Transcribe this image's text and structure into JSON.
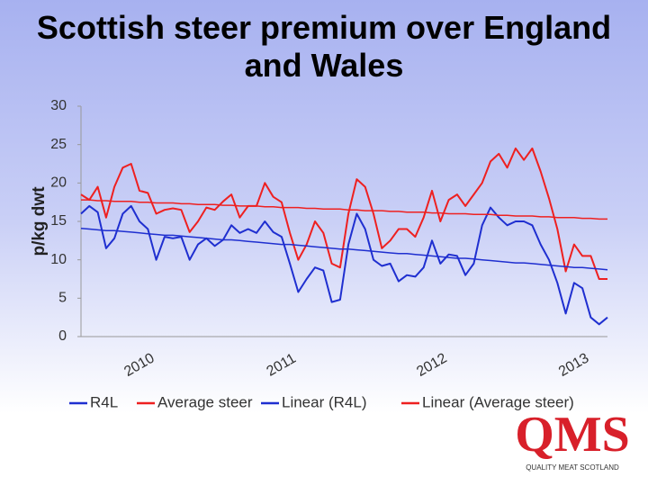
{
  "chart_data": {
    "type": "line",
    "title": "Scottish steer premium over England and Wales",
    "y_label": "p/kg dwt",
    "categories": [
      null,
      null,
      null,
      null,
      null,
      null,
      null,
      "2010",
      null,
      null,
      null,
      null,
      null,
      null,
      null,
      null,
      null,
      null,
      null,
      null,
      null,
      null,
      null,
      null,
      "2011",
      null,
      null,
      null,
      null,
      null,
      null,
      null,
      null,
      null,
      null,
      null,
      null,
      null,
      null,
      null,
      null,
      null,
      "2012",
      null,
      null,
      null,
      null,
      null,
      null,
      null,
      null,
      null,
      null,
      null,
      null,
      null,
      null,
      null,
      null,
      "2013",
      null,
      null,
      null,
      null
    ],
    "series": [
      {
        "name": "R4L",
        "color": "#1f2fd0",
        "width": 2,
        "values": [
          16,
          17,
          16.2,
          11.5,
          12.8,
          16,
          17,
          15,
          14,
          10,
          13,
          12.8,
          13,
          10,
          12,
          12.8,
          11.8,
          12.6,
          14.5,
          13.5,
          14,
          13.5,
          15,
          13.6,
          13,
          9.5,
          5.8,
          7.5,
          9,
          8.6,
          4.5,
          4.8,
          12,
          16,
          14,
          10,
          9.2,
          9.5,
          7.2,
          8,
          7.8,
          9,
          12.5,
          9.5,
          10.7,
          10.5,
          8,
          9.5,
          14.5,
          16.8,
          15.5,
          14.5,
          15,
          15,
          14.5,
          12,
          10,
          7,
          3,
          7,
          6.3,
          2.5,
          1.6,
          2.5
        ]
      },
      {
        "name": "Average steer",
        "color": "#ee2020",
        "width": 2,
        "values": [
          18.5,
          17.8,
          19.5,
          15.5,
          19.5,
          22,
          22.5,
          19,
          18.7,
          16,
          16.5,
          16.7,
          16.5,
          13.6,
          15,
          16.8,
          16.5,
          17.6,
          18.5,
          15.5,
          17,
          17,
          20,
          18.2,
          17.5,
          13.5,
          10,
          12,
          15,
          13.5,
          9.5,
          9,
          16,
          20.5,
          19.5,
          16,
          11.5,
          12.5,
          14,
          14,
          13,
          15.5,
          19,
          15,
          17.8,
          18.5,
          17,
          18.5,
          20,
          22.8,
          23.8,
          22,
          24.5,
          23,
          24.5,
          21.5,
          18,
          14,
          8.5,
          12,
          10.5,
          10.5,
          7.5,
          7.5
        ]
      },
      {
        "name": "Linear (R4L)",
        "color": "#1f2fd0",
        "width": 1.5,
        "values": [
          14.1,
          14.0,
          13.9,
          13.8,
          13.8,
          13.7,
          13.6,
          13.5,
          13.4,
          13.3,
          13.2,
          13.2,
          13.1,
          13.0,
          12.9,
          12.8,
          12.7,
          12.6,
          12.6,
          12.5,
          12.4,
          12.3,
          12.2,
          12.1,
          12.0,
          12.0,
          11.9,
          11.8,
          11.7,
          11.6,
          11.5,
          11.4,
          11.4,
          11.3,
          11.2,
          11.1,
          11.0,
          10.9,
          10.8,
          10.8,
          10.7,
          10.6,
          10.5,
          10.4,
          10.3,
          10.2,
          10.2,
          10.1,
          10.0,
          9.9,
          9.8,
          9.7,
          9.6,
          9.6,
          9.5,
          9.4,
          9.3,
          9.2,
          9.1,
          9.0,
          9.0,
          8.9,
          8.8,
          8.7
        ]
      },
      {
        "name": "Linear (Average steer)",
        "color": "#ee2020",
        "width": 1.5,
        "values": [
          17.8,
          17.8,
          17.7,
          17.7,
          17.6,
          17.6,
          17.6,
          17.5,
          17.5,
          17.4,
          17.4,
          17.4,
          17.3,
          17.3,
          17.2,
          17.2,
          17.2,
          17.1,
          17.1,
          17.0,
          17.0,
          17.0,
          16.9,
          16.9,
          16.8,
          16.8,
          16.8,
          16.7,
          16.7,
          16.6,
          16.6,
          16.6,
          16.5,
          16.5,
          16.4,
          16.4,
          16.4,
          16.3,
          16.3,
          16.2,
          16.2,
          16.2,
          16.1,
          16.1,
          16.0,
          16.0,
          16.0,
          15.9,
          15.9,
          15.9,
          15.8,
          15.8,
          15.7,
          15.7,
          15.7,
          15.6,
          15.6,
          15.5,
          15.5,
          15.5,
          15.4,
          15.4,
          15.3,
          15.3
        ]
      }
    ],
    "ylim": [
      0,
      30
    ],
    "yticks": [
      0,
      5,
      10,
      15,
      20,
      25,
      30
    ],
    "grid": false,
    "legend": "bottom"
  },
  "logo": {
    "text": "QMS",
    "tagline": "QUALITY MEAT SCOTLAND"
  }
}
